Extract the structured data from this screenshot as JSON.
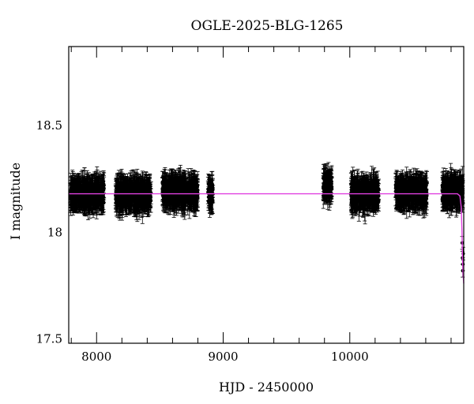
{
  "chart_data": {
    "type": "scatter",
    "title": "OGLE-2025-BLG-1265",
    "xlabel": "HJD - 2450000",
    "ylabel": "I magnitude",
    "xlim": [
      7780,
      10900
    ],
    "ylim": [
      18.87,
      17.48
    ],
    "y_inverted": true,
    "grid": false,
    "x_ticks": [
      8000,
      9000,
      10000
    ],
    "y_ticks": [
      17.5,
      18,
      18.5
    ],
    "x_minor_step": 200,
    "y_minor_step": 0.1,
    "colors": {
      "points": "#000000",
      "model": "#e040e0",
      "axes": "#000000"
    },
    "observing_seasons": [
      {
        "start": 7790,
        "end": 8060,
        "mean_mag": 18.18
      },
      {
        "start": 8150,
        "end": 8430,
        "mean_mag": 18.18
      },
      {
        "start": 8520,
        "end": 8800,
        "mean_mag": 18.19
      },
      {
        "start": 8880,
        "end": 8920,
        "mean_mag": 18.18
      },
      {
        "start": 9790,
        "end": 9860,
        "mean_mag": 18.22
      },
      {
        "start": 10010,
        "end": 10230,
        "mean_mag": 18.18
      },
      {
        "start": 10360,
        "end": 10610,
        "mean_mag": 18.19
      },
      {
        "start": 10730,
        "end": 10895,
        "mean_mag": 18.19
      }
    ],
    "event_points": [
      {
        "x": 10888,
        "y": 17.95
      },
      {
        "x": 10890,
        "y": 17.88
      },
      {
        "x": 10892,
        "y": 17.82
      },
      {
        "x": 10894,
        "y": 17.85
      },
      {
        "x": 10896,
        "y": 17.9
      }
    ],
    "model": {
      "baseline_mag": 18.18,
      "points": [
        {
          "x": 7780,
          "y": 18.18
        },
        {
          "x": 10850,
          "y": 18.18
        },
        {
          "x": 10870,
          "y": 18.17
        },
        {
          "x": 10880,
          "y": 18.12
        },
        {
          "x": 10886,
          "y": 18.0
        },
        {
          "x": 10890,
          "y": 17.88
        },
        {
          "x": 10895,
          "y": 17.8
        },
        {
          "x": 10900,
          "y": 17.76
        }
      ]
    }
  }
}
